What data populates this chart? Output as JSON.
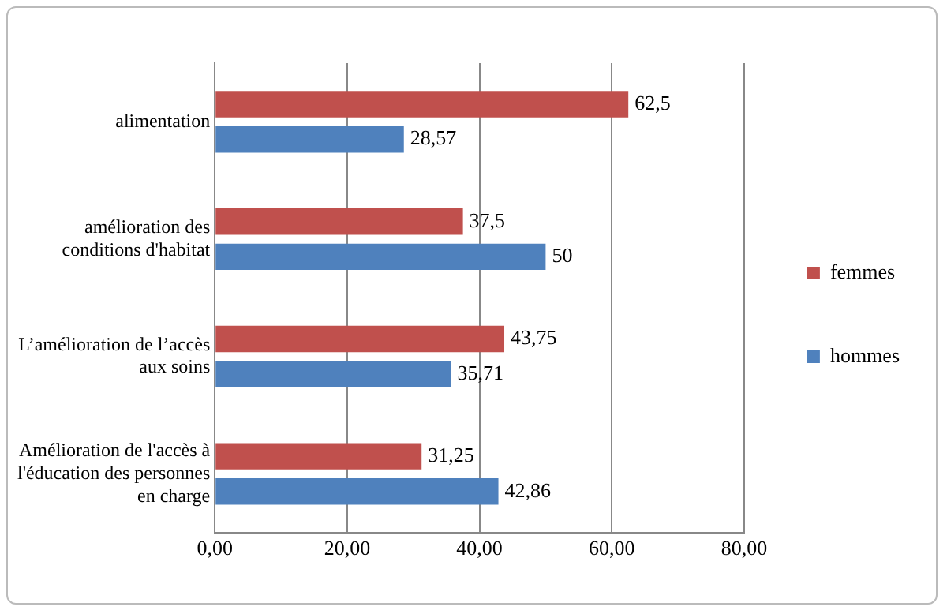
{
  "chart_data": {
    "type": "bar",
    "orientation": "horizontal",
    "categories": [
      "alimentation",
      "amélioration des conditions d'habitat",
      "L’amélioration de l’accès aux soins",
      "Amélioration de l'accès à l'éducation des personnes en charge"
    ],
    "series": [
      {
        "name": "femmes",
        "color": "#c0504d",
        "values": [
          62.5,
          37.5,
          43.75,
          31.25
        ],
        "value_labels": [
          "62,5",
          "37,5",
          "43,75",
          "31,25"
        ]
      },
      {
        "name": "hommes",
        "color": "#4f81bd",
        "values": [
          28.57,
          50,
          35.71,
          42.86
        ],
        "value_labels": [
          "28,57",
          "50",
          "35,71",
          "42,86"
        ]
      }
    ],
    "xlim": [
      0,
      80
    ],
    "xticks": [
      {
        "value": 0,
        "label": "0,00"
      },
      {
        "value": 20,
        "label": "20,00"
      },
      {
        "value": 40,
        "label": "40,00"
      },
      {
        "value": 60,
        "label": "60,00"
      },
      {
        "value": 80,
        "label": "80,00"
      }
    ],
    "grid": "x",
    "legend": "right"
  }
}
